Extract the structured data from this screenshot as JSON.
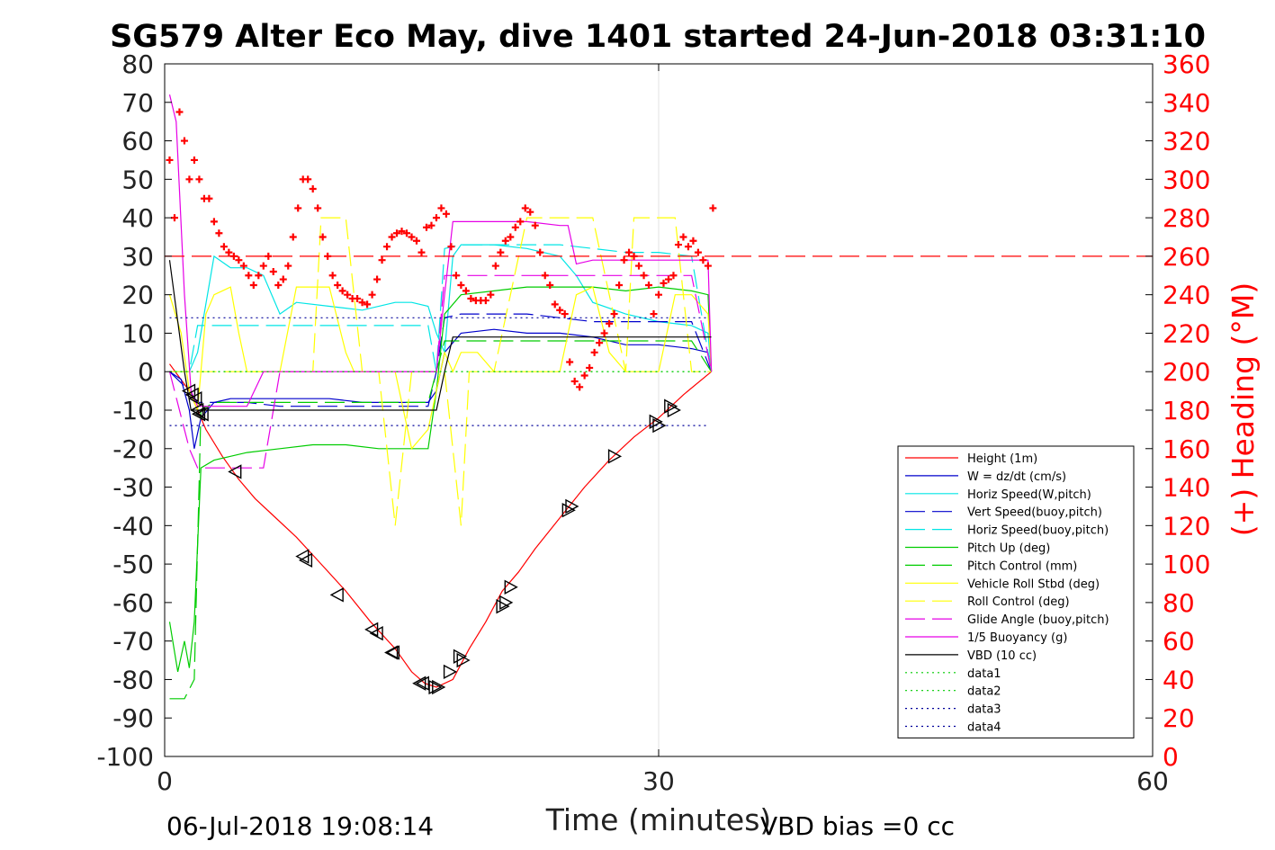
{
  "chart_data": {
    "type": "line",
    "title": "SG579 Alter Eco May, dive 1401 started 24-Jun-2018 03:31:10",
    "xlabel": "Time (minutes)",
    "ylabel": "",
    "y2label": "(+) Heading (°M)",
    "xlim": [
      0,
      60
    ],
    "ylim": [
      -100,
      80
    ],
    "y2lim": [
      0,
      360
    ],
    "xticks": [
      0,
      30,
      60
    ],
    "yticks": [
      -100,
      -90,
      -80,
      -70,
      -60,
      -50,
      -40,
      -30,
      -20,
      -10,
      0,
      10,
      20,
      30,
      40,
      50,
      60,
      70,
      80
    ],
    "y2ticks": [
      0,
      20,
      40,
      60,
      80,
      100,
      120,
      140,
      160,
      180,
      200,
      220,
      240,
      260,
      280,
      300,
      320,
      340,
      360
    ],
    "grid": "x-only",
    "legend_position": "right",
    "colors": {
      "red": "#ff0000",
      "blue": "#0000cc",
      "cyan": "#00e5e5",
      "green": "#00cc00",
      "yellow": "#ffff00",
      "magenta": "#e600e6",
      "black": "#000000",
      "navy": "#000099"
    },
    "series": [
      {
        "name": "Height (1m)",
        "color": "#ff0000",
        "style": "solid",
        "x": [
          0.3,
          1.5,
          2.5,
          3.5,
          4.5,
          5.5,
          6.5,
          8,
          9.5,
          11,
          12.5,
          14,
          15,
          15.8,
          16.5,
          17.5,
          18.5,
          19.5,
          20.5,
          21.5,
          22.5,
          24,
          25.5,
          27,
          28.5,
          30,
          31.5,
          33.2
        ],
        "y": [
          2,
          -5,
          -15,
          -22,
          -28,
          -33,
          -37,
          -43,
          -50,
          -57,
          -65,
          -72,
          -78,
          -81,
          -82,
          -80,
          -72,
          -65,
          -57,
          -52,
          -46,
          -38,
          -30,
          -23,
          -17,
          -12,
          -6,
          0
        ]
      },
      {
        "name": "W = dz/dt (cm/s)",
        "color": "#0000cc",
        "style": "solid",
        "x": [
          0.3,
          1,
          1.5,
          1.8,
          2.2,
          3,
          4,
          6,
          8,
          10,
          12,
          14,
          15,
          16,
          16.5,
          17,
          18,
          20,
          22,
          24,
          26,
          28,
          30,
          32,
          33,
          33.2
        ],
        "y": [
          0,
          -2,
          -10,
          -20,
          -12,
          -8,
          -7,
          -7,
          -7,
          -7,
          -8,
          -8,
          -8,
          -8,
          -5,
          5,
          10,
          11,
          10,
          10,
          9,
          7,
          7,
          6,
          5,
          0
        ]
      },
      {
        "name": "Horiz Speed(W,pitch)",
        "color": "#00e5e5",
        "style": "solid",
        "x": [
          0.3,
          1.5,
          2,
          3,
          4,
          5,
          6,
          7,
          8,
          10,
          12,
          14,
          15,
          16,
          16.5,
          17,
          17.5,
          18,
          20,
          22,
          24,
          25,
          26,
          28,
          30,
          32,
          33,
          33.2
        ],
        "y": [
          0,
          0,
          5,
          30,
          27,
          27,
          25,
          15,
          18,
          17,
          16,
          18,
          18,
          17,
          10,
          5,
          30,
          33,
          33,
          32,
          30,
          25,
          18,
          15,
          13,
          12,
          10,
          0
        ]
      },
      {
        "name": "Vert Speed(buoy,pitch)",
        "color": "#0000cc",
        "style": "dashed",
        "x": [
          0.3,
          1.5,
          2,
          3,
          5,
          7,
          10,
          13,
          16,
          16.5,
          17,
          18,
          20,
          22,
          24,
          26,
          28,
          30,
          32,
          33.2
        ],
        "y": [
          0,
          -5,
          -8,
          -8,
          -8,
          -9,
          -9,
          -9,
          -9,
          0,
          14,
          15,
          15,
          15,
          14,
          13,
          13,
          13,
          13,
          0
        ]
      },
      {
        "name": "Horiz Speed(buoy,pitch)",
        "color": "#00e5e5",
        "style": "dashed",
        "x": [
          0.3,
          1.5,
          2,
          3,
          5,
          7,
          10,
          13,
          16,
          16.5,
          17,
          18,
          20,
          22,
          24,
          26,
          28,
          30,
          32,
          33.2
        ],
        "y": [
          0,
          0,
          12,
          12,
          12,
          12,
          12,
          12,
          12,
          0,
          32,
          33,
          33,
          33,
          33,
          32,
          31,
          31,
          30,
          0
        ]
      },
      {
        "name": "Pitch Up (deg)",
        "color": "#00cc00",
        "style": "solid",
        "x": [
          0.3,
          0.8,
          1.2,
          1.5,
          1.8,
          2.2,
          3,
          4,
          5,
          7,
          9,
          11,
          13,
          15,
          16,
          16.5,
          17,
          18,
          20,
          22,
          24,
          26,
          28,
          30,
          32,
          33,
          33.2
        ],
        "y": [
          -65,
          -78,
          -70,
          -77,
          -65,
          -25,
          -23,
          -22,
          -21,
          -20,
          -19,
          -19,
          -20,
          -20,
          -20,
          -5,
          15,
          20,
          21,
          22,
          22,
          22,
          21,
          22,
          21,
          20,
          0
        ]
      },
      {
        "name": "Pitch Control (mm)",
        "color": "#00cc00",
        "style": "dashed",
        "x": [
          0.3,
          1.2,
          1.8,
          2.2,
          3,
          5,
          8,
          11,
          14,
          15.5,
          16,
          16.5,
          17,
          18,
          20,
          22,
          24,
          26,
          28,
          30,
          32,
          33.2
        ],
        "y": [
          -85,
          -85,
          -80,
          -10,
          -8,
          -8,
          -8,
          -8,
          -8,
          -8,
          -8,
          0,
          8,
          8,
          8,
          8,
          8,
          8,
          8,
          8,
          8,
          0
        ]
      },
      {
        "name": "Vehicle Roll Stbd (deg)",
        "color": "#ffff00",
        "style": "solid",
        "x": [
          0.3,
          1,
          1.5,
          2,
          2.5,
          3,
          4,
          4.5,
          5,
          6,
          7,
          8,
          9,
          10,
          11,
          11.5,
          12,
          13,
          14,
          15,
          16,
          17,
          17.5,
          18,
          19,
          20,
          21,
          22,
          23,
          24,
          25,
          26,
          27,
          28,
          29,
          30,
          31,
          32,
          33,
          33.2
        ],
        "y": [
          20,
          10,
          -5,
          -10,
          15,
          20,
          22,
          10,
          0,
          0,
          0,
          22,
          22,
          22,
          5,
          0,
          0,
          0,
          0,
          -20,
          -15,
          5,
          0,
          5,
          5,
          0,
          0,
          0,
          0,
          0,
          20,
          22,
          5,
          0,
          0,
          0,
          20,
          20,
          15,
          0
        ]
      },
      {
        "name": "Roll Control (deg)",
        "color": "#ffff00",
        "style": "dashed",
        "x": [
          0.3,
          2,
          3,
          5,
          7,
          8,
          9,
          9.5,
          10,
          11,
          12,
          13,
          14,
          15,
          16,
          17,
          18,
          18.5,
          19,
          20,
          22,
          24,
          26,
          28,
          28.5,
          30,
          31,
          32,
          33,
          33.2
        ],
        "y": [
          0,
          0,
          0,
          0,
          0,
          0,
          0,
          40,
          40,
          40,
          0,
          0,
          -40,
          0,
          0,
          0,
          -40,
          0,
          0,
          0,
          40,
          40,
          40,
          0,
          40,
          40,
          40,
          0,
          0,
          0
        ]
      },
      {
        "name": "Glide Angle (buoy,pitch)",
        "color": "#e600e6",
        "style": "dashed",
        "x": [
          0.3,
          1.5,
          2,
          2.5,
          3,
          5,
          6,
          7,
          10,
          13,
          16,
          16.5,
          17,
          18,
          20,
          22,
          24,
          26,
          28,
          30,
          32,
          33.2
        ],
        "y": [
          0,
          -20,
          -25,
          -25,
          -25,
          -25,
          -25,
          0,
          0,
          0,
          0,
          0,
          25,
          25,
          25,
          25,
          25,
          25,
          25,
          25,
          25,
          0
        ]
      },
      {
        "name": "1/5 Buoyancy (g)",
        "color": "#e600e6",
        "style": "solid",
        "x": [
          0.3,
          0.7,
          1.2,
          1.6,
          2,
          3,
          5,
          6,
          7,
          10,
          13,
          15,
          16,
          16.5,
          17,
          17.5,
          18,
          20,
          22,
          24,
          24.5,
          25,
          26,
          28,
          30,
          32,
          33,
          33.2
        ],
        "y": [
          72,
          65,
          20,
          -5,
          -9,
          -9,
          -9,
          0,
          0,
          0,
          0,
          0,
          0,
          0,
          20,
          39,
          39,
          39,
          39,
          38,
          38,
          28,
          29,
          29,
          29,
          29,
          29,
          0
        ]
      },
      {
        "name": "VBD (10 cc)",
        "color": "#000000",
        "style": "solid",
        "x": [
          0.3,
          1.2,
          1.6,
          2,
          4,
          8,
          12,
          16,
          16.5,
          17,
          17.5,
          18,
          20,
          24,
          28,
          30,
          32,
          33.2
        ],
        "y": [
          29,
          0,
          -10,
          -10,
          -10,
          -10,
          -10,
          -10,
          -10,
          0,
          9,
          9,
          9,
          9,
          9,
          9,
          9,
          9
        ]
      },
      {
        "name": "data1",
        "color": "#00cc00",
        "style": "dotted",
        "x": [
          0.3,
          33
        ],
        "y": [
          0,
          0
        ]
      },
      {
        "name": "data2",
        "color": "#00cc00",
        "style": "dotted",
        "x": [
          0.3,
          33
        ],
        "y": [
          0,
          0
        ]
      },
      {
        "name": "data3",
        "color": "#000099",
        "style": "dotted",
        "x": [
          0.3,
          33
        ],
        "y": [
          14,
          14
        ]
      },
      {
        "name": "data4",
        "color": "#000099",
        "style": "dotted",
        "x": [
          0.3,
          33
        ],
        "y": [
          -14,
          -14
        ]
      }
    ],
    "heading": {
      "color": "#ff0000",
      "marker": "+",
      "reference": 260,
      "x": [
        0.3,
        0.6,
        0.9,
        1.2,
        1.5,
        1.8,
        2.1,
        2.4,
        2.7,
        3,
        3.3,
        3.6,
        3.9,
        4.2,
        4.5,
        4.8,
        5.1,
        5.4,
        5.7,
        6,
        6.3,
        6.6,
        6.9,
        7.2,
        7.5,
        7.8,
        8.1,
        8.4,
        8.7,
        9,
        9.3,
        9.6,
        9.9,
        10.2,
        10.5,
        10.8,
        11.1,
        11.4,
        11.7,
        12,
        12.3,
        12.6,
        12.9,
        13.2,
        13.5,
        13.8,
        14.1,
        14.4,
        14.7,
        15,
        15.3,
        15.6,
        15.9,
        16.2,
        16.5,
        16.8,
        17.1,
        17.4,
        17.7,
        18,
        18.3,
        18.6,
        18.9,
        19.2,
        19.5,
        19.8,
        20.1,
        20.4,
        20.7,
        21,
        21.3,
        21.6,
        21.9,
        22.2,
        22.5,
        22.8,
        23.1,
        23.4,
        23.7,
        24,
        24.3,
        24.6,
        24.9,
        25.2,
        25.5,
        25.8,
        26.1,
        26.4,
        26.7,
        27,
        27.3,
        27.6,
        27.9,
        28.2,
        28.5,
        28.8,
        29.1,
        29.4,
        29.7,
        30,
        30.3,
        30.6,
        30.9,
        31.2,
        31.5,
        31.8,
        32.1,
        32.4,
        32.7,
        33,
        33.3
      ],
      "y": [
        310,
        280,
        335,
        320,
        300,
        310,
        300,
        290,
        290,
        278,
        272,
        265,
        262,
        260,
        258,
        255,
        250,
        245,
        250,
        255,
        260,
        252,
        245,
        248,
        255,
        270,
        285,
        300,
        300,
        295,
        285,
        270,
        260,
        250,
        245,
        242,
        240,
        238,
        238,
        236,
        235,
        240,
        248,
        258,
        265,
        270,
        272,
        273,
        272,
        270,
        268,
        262,
        275,
        276,
        280,
        285,
        282,
        265,
        250,
        245,
        242,
        238,
        237,
        237,
        237,
        240,
        255,
        262,
        268,
        270,
        275,
        278,
        285,
        283,
        276,
        262,
        250,
        245,
        235,
        232,
        230,
        205,
        195,
        192,
        198,
        202,
        210,
        215,
        220,
        225,
        230,
        245,
        258,
        262,
        260,
        255,
        250,
        245,
        230,
        240,
        246,
        248,
        250,
        266,
        270,
        265,
        268,
        262,
        258,
        255,
        285
      ]
    },
    "markers": {
      "color": "#000000",
      "x": [
        1.5,
        1.7,
        1.9,
        2.0,
        2.1,
        2.3,
        4.3,
        8.4,
        8.6,
        10.5,
        12.6,
        12.9,
        13.8,
        13.9,
        15.5,
        15.7,
        16.4,
        16.6,
        17.3,
        17.9,
        18.1,
        20.5,
        20.7,
        21.0,
        24.5,
        24.7,
        27.3,
        29.8,
        30.0,
        30.7,
        30.9
      ],
      "y": [
        -5,
        -6,
        -7,
        -10,
        -11,
        -11,
        -26,
        -48,
        -49,
        -58,
        -67,
        -68,
        -73,
        -73,
        -81,
        -81,
        -82,
        -82,
        -78,
        -74,
        -75,
        -61,
        -60,
        -56,
        -36,
        -35,
        -22,
        -13,
        -14,
        -9,
        -10
      ],
      "dir": [
        "L",
        "L",
        "L",
        "L",
        "L",
        "L",
        "L",
        "L",
        "L",
        "L",
        "L",
        "L",
        "L",
        "L",
        "L",
        "L",
        "R",
        "R",
        "R",
        "R",
        "R",
        "R",
        "R",
        "R",
        "R",
        "R",
        "R",
        "R",
        "R",
        "R",
        "R"
      ]
    }
  },
  "footer": {
    "date": "06-Jul-2018 19:08:14",
    "vbd_bias": "VBD bias =0 cc"
  }
}
